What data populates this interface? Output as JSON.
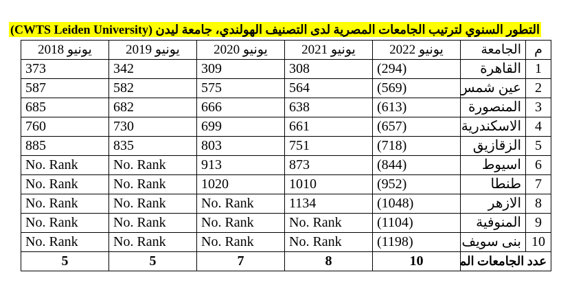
{
  "title": "التطور السنوي لترتيب الجامعات المصرية لدى التصنيف الهولندي، جامعة ليدن (CWTS Leiden University)",
  "header": {
    "num": "م",
    "university": "الجامعة",
    "years": [
      "يونيو 2022",
      "يونيو 2021",
      "يونيو 2020",
      "يونيو 2019",
      "يونيو 2018"
    ]
  },
  "rows": [
    {
      "num": "1",
      "name": "القاهرة",
      "values": [
        "(294)",
        "308",
        "309",
        "342",
        "373"
      ]
    },
    {
      "num": "2",
      "name": "عين شمس",
      "values": [
        "(569)",
        "564",
        "575",
        "582",
        "587"
      ]
    },
    {
      "num": "3",
      "name": "المنصورة",
      "values": [
        "(613)",
        "638",
        "666",
        "682",
        "685"
      ]
    },
    {
      "num": "4",
      "name": "الاسكندرية",
      "values": [
        "(657)",
        "661",
        "699",
        "730",
        "760"
      ]
    },
    {
      "num": "5",
      "name": "الزقازيق",
      "values": [
        "(718)",
        "751",
        "803",
        "835",
        "885"
      ]
    },
    {
      "num": "6",
      "name": "اسيوط",
      "values": [
        "(844)",
        "873",
        "913",
        "No. Rank",
        "No. Rank"
      ]
    },
    {
      "num": "7",
      "name": "طنطا",
      "values": [
        "(952)",
        "1010",
        "1020",
        "No. Rank",
        "No. Rank"
      ]
    },
    {
      "num": "8",
      "name": "الازهر",
      "values": [
        "(1048)",
        "1134",
        "No. Rank",
        "No. Rank",
        "No. Rank"
      ]
    },
    {
      "num": "9",
      "name": "المنوفية",
      "values": [
        "(1104)",
        "No. Rank",
        "No. Rank",
        "No. Rank",
        "No. Rank"
      ]
    },
    {
      "num": "10",
      "name": "بنى سويف",
      "values": [
        "(1198)",
        "No. Rank",
        "No. Rank",
        "No. Rank",
        "No. Rank"
      ]
    }
  ],
  "total": {
    "label": "عدد الجامعات المصنفة",
    "values": [
      "10",
      "8",
      "7",
      "5",
      "5"
    ]
  }
}
